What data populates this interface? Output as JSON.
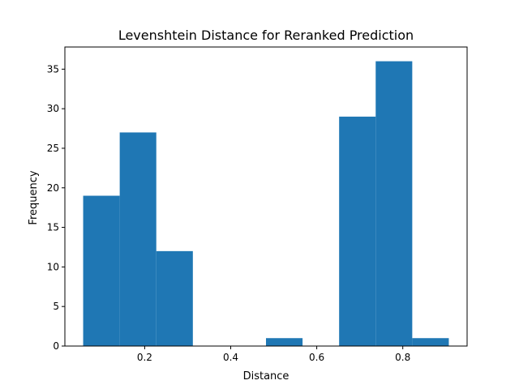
{
  "chart_data": {
    "type": "bar",
    "title": "Levenshtein Distance for Reranked Prediction",
    "xlabel": "Distance",
    "ylabel": "Frequency",
    "bins": [
      {
        "x0": 0.057,
        "x1": 0.142,
        "value": 19
      },
      {
        "x0": 0.142,
        "x1": 0.227,
        "value": 27
      },
      {
        "x0": 0.227,
        "x1": 0.312,
        "value": 12
      },
      {
        "x0": 0.312,
        "x1": 0.397,
        "value": 0
      },
      {
        "x0": 0.397,
        "x1": 0.482,
        "value": 0
      },
      {
        "x0": 0.482,
        "x1": 0.567,
        "value": 1
      },
      {
        "x0": 0.567,
        "x1": 0.652,
        "value": 0
      },
      {
        "x0": 0.652,
        "x1": 0.737,
        "value": 29
      },
      {
        "x0": 0.737,
        "x1": 0.822,
        "value": 36
      },
      {
        "x0": 0.822,
        "x1": 0.907,
        "value": 1
      }
    ],
    "xlim": [
      0.0145,
      0.9495
    ],
    "ylim": [
      0,
      37.8
    ],
    "xticks": [
      0.2,
      0.4,
      0.6,
      0.8
    ],
    "xtick_labels": [
      "0.2",
      "0.4",
      "0.6",
      "0.8"
    ],
    "yticks": [
      0,
      5,
      10,
      15,
      20,
      25,
      30,
      35
    ],
    "ytick_labels": [
      "0",
      "5",
      "10",
      "15",
      "20",
      "25",
      "30",
      "35"
    ],
    "bar_color": "#1f77b4",
    "grid": false,
    "legend": "none"
  }
}
